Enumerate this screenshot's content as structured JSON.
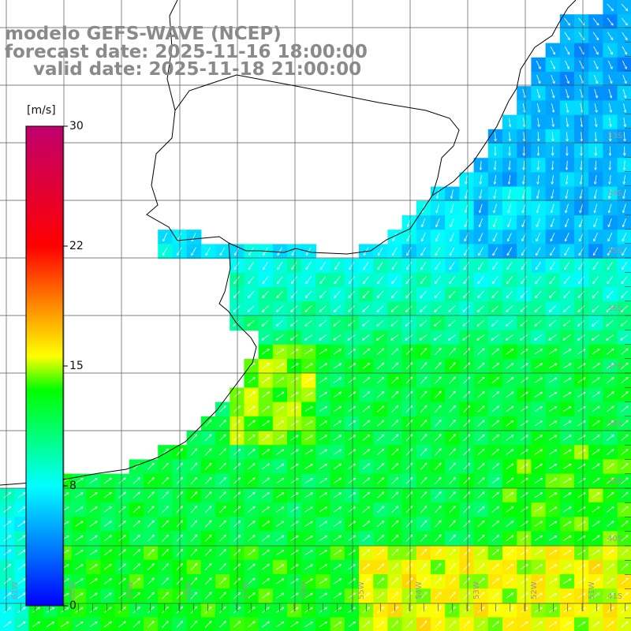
{
  "header": {
    "line1": "modelo GEFS-WAVE (NCEP)",
    "line2": "forecast date: 2025-11-16 18:00:00",
    "line3": "valid date: 2025-11-18 21:00:00"
  },
  "colorbar": {
    "unit": "[m/s]",
    "min": 0,
    "max": 30,
    "ticks": [
      "30",
      "22",
      "15",
      "8",
      "0"
    ],
    "tick_values": [
      30,
      22.5,
      15,
      7.5,
      0
    ],
    "colors": [
      "#0000ff",
      "#00ffff",
      "#00ff00",
      "#ffff00",
      "#ff0000",
      "#c0006e"
    ]
  },
  "map": {
    "lon_range": [
      -61.5,
      -50.5
    ],
    "lat_range": [
      -41.2,
      -30.5
    ],
    "lon_labels": [
      "61W",
      "60W",
      "59W",
      "58W",
      "57W",
      "56W",
      "55W",
      "54W",
      "53W",
      "52W",
      "51W"
    ],
    "lat_labels": [
      "33S",
      "34S",
      "35S",
      "36S",
      "37S",
      "38S",
      "39S",
      "40S",
      "41S"
    ],
    "field": "wind speed (m/s) with direction arrows"
  }
}
